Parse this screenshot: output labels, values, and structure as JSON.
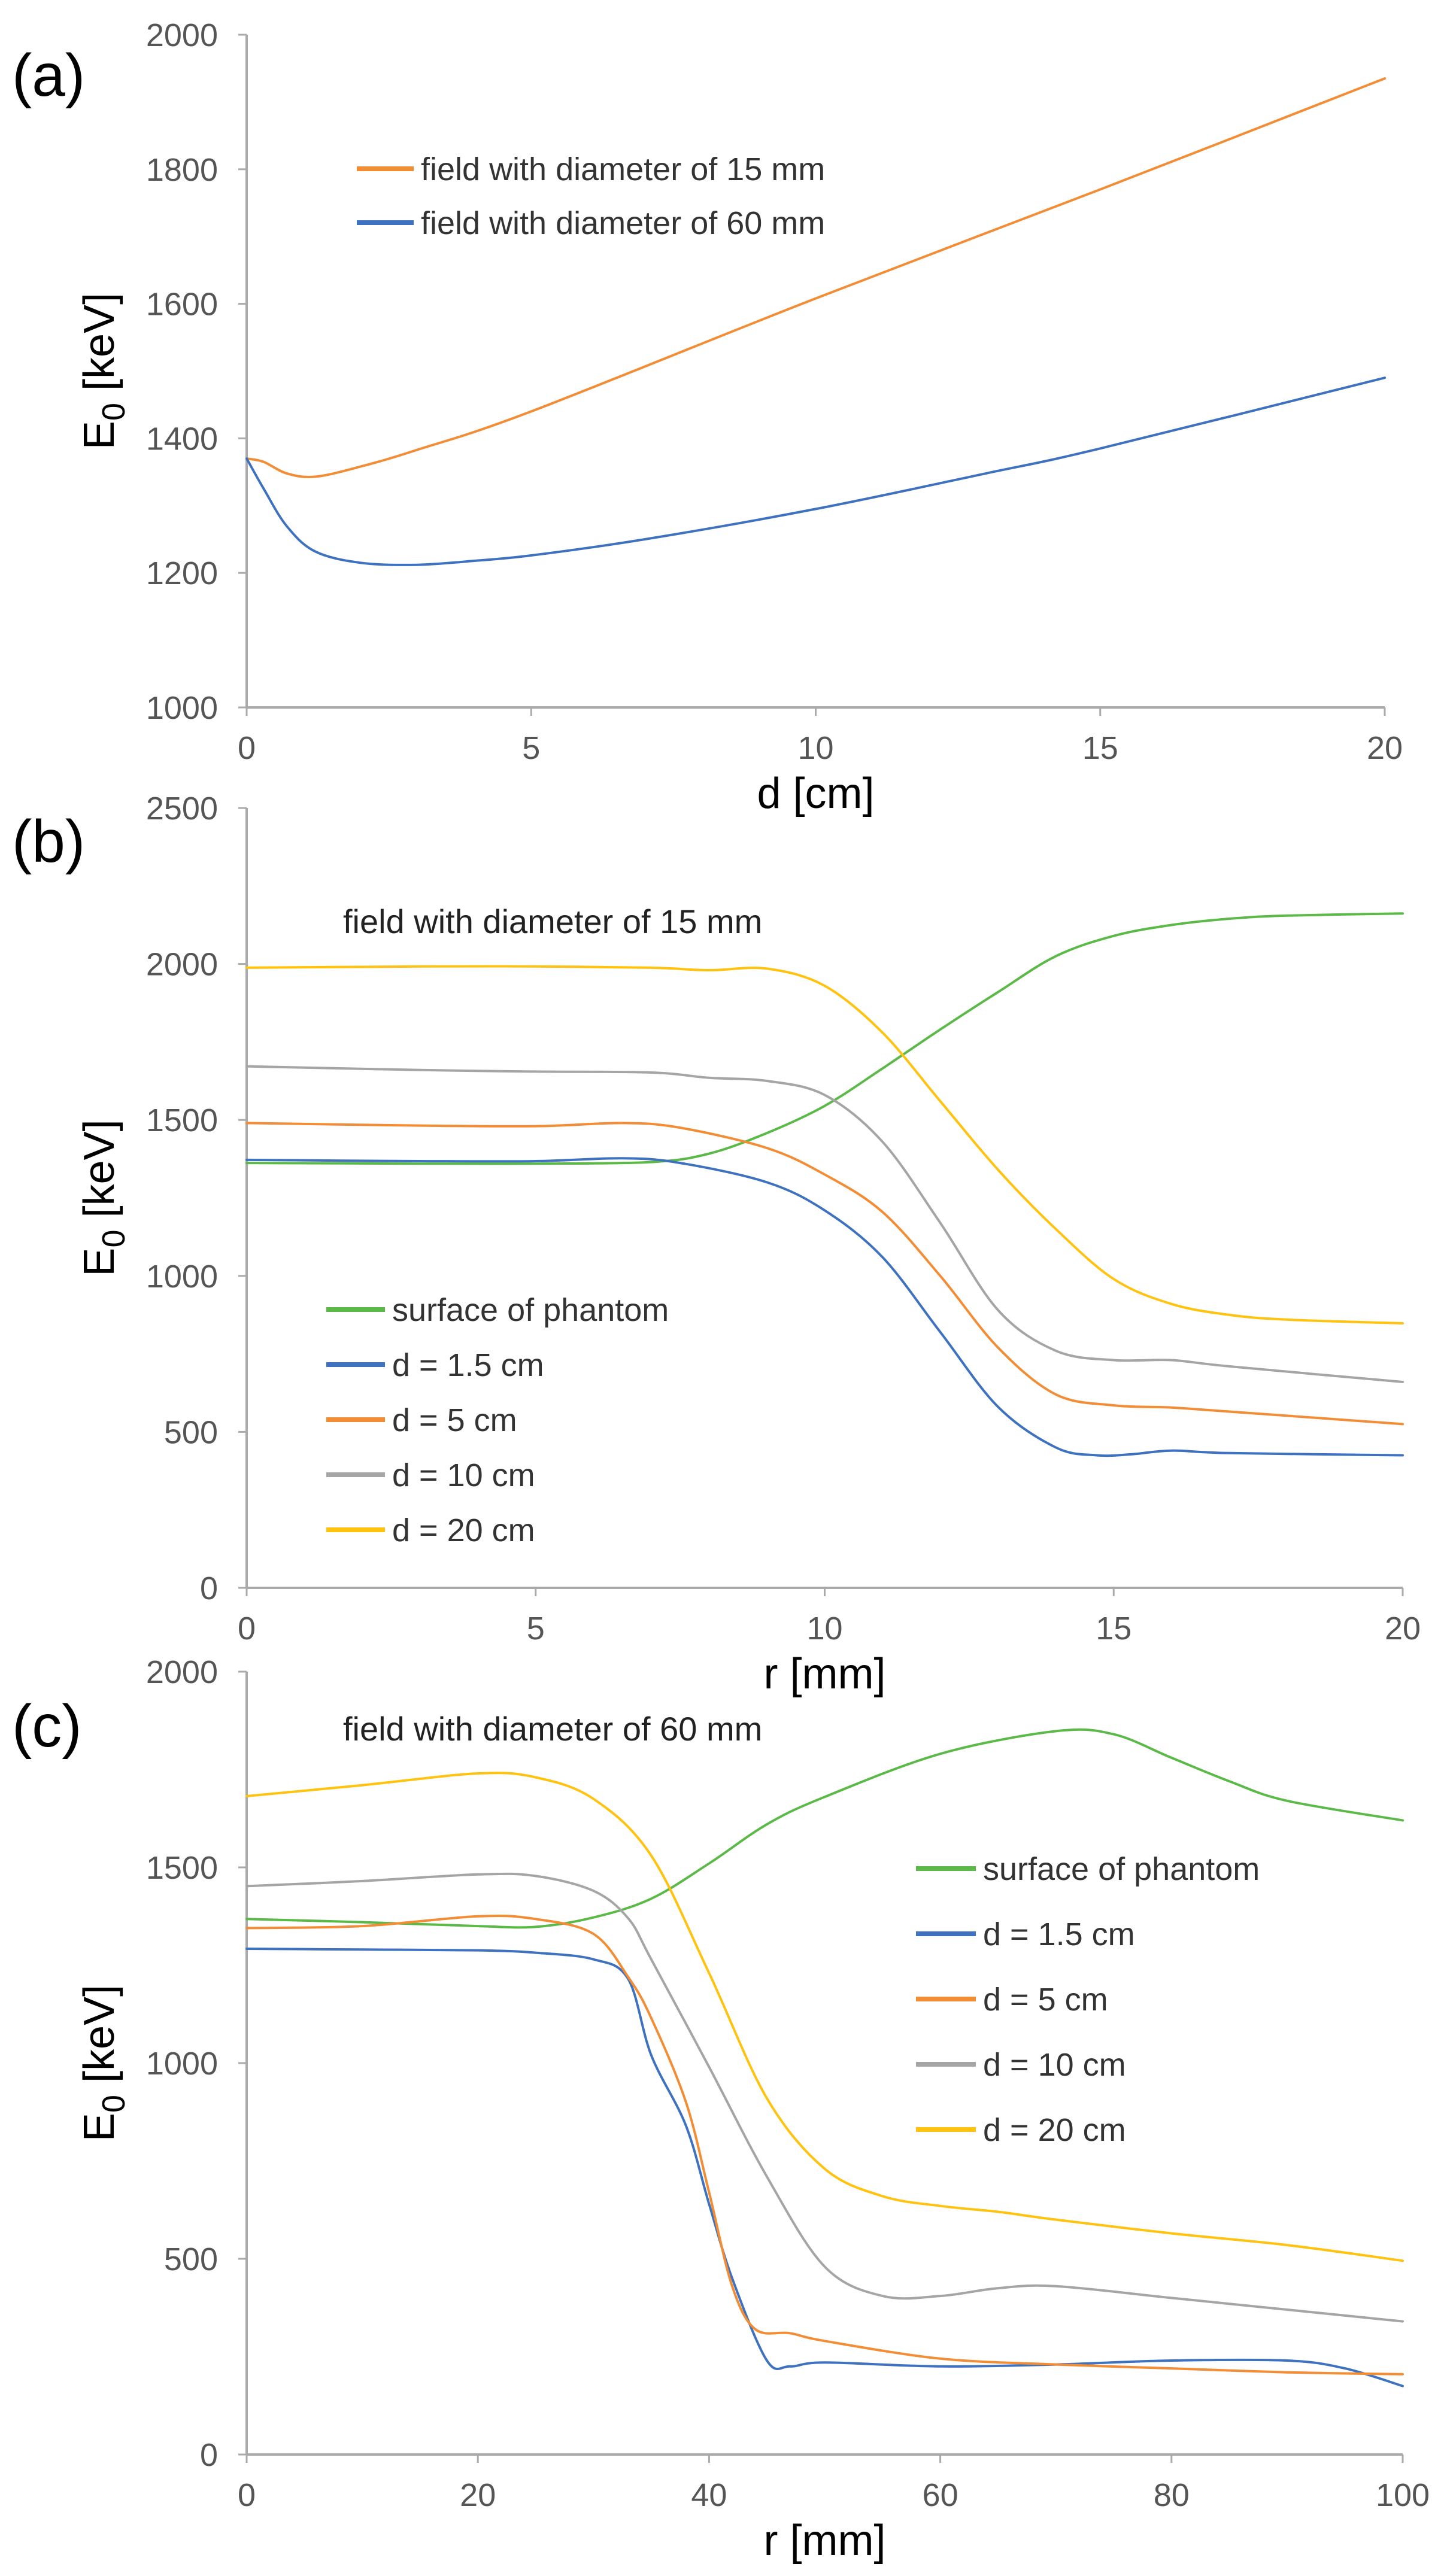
{
  "chart_data": [
    {
      "type": "line",
      "panel_label": "(a)",
      "title": "",
      "xlabel": "d [cm]",
      "ylabel_main": "E",
      "ylabel_sub": "0",
      "ylabel_unit": " [keV]",
      "xlim": [
        0,
        20
      ],
      "ylim": [
        1000,
        2000
      ],
      "xticks": [
        0,
        5,
        10,
        15,
        20
      ],
      "yticks": [
        1000,
        1200,
        1400,
        1600,
        1800,
        2000
      ],
      "grid": false,
      "legend_position": "top-left",
      "annotation": "",
      "series": [
        {
          "name": "field with diameter of 15 mm",
          "color": "#f28d35",
          "points": [
            [
              0,
              1370
            ],
            [
              0.3,
              1365
            ],
            [
              0.7,
              1348
            ],
            [
              1.2,
              1343
            ],
            [
              2,
              1358
            ],
            [
              3,
              1383
            ],
            [
              5,
              1440
            ],
            [
              10,
              1608
            ],
            [
              15,
              1770
            ],
            [
              20,
              1935
            ]
          ]
        },
        {
          "name": "field with diameter of 60 mm",
          "color": "#3e72c0",
          "points": [
            [
              0,
              1370
            ],
            [
              0.3,
              1325
            ],
            [
              0.7,
              1270
            ],
            [
              1.2,
              1232
            ],
            [
              2,
              1215
            ],
            [
              3,
              1212
            ],
            [
              4,
              1218
            ],
            [
              5,
              1226
            ],
            [
              7,
              1250
            ],
            [
              10,
              1295
            ],
            [
              13,
              1348
            ],
            [
              15,
              1385
            ],
            [
              20,
              1490
            ]
          ]
        }
      ]
    },
    {
      "type": "line",
      "panel_label": "(b)",
      "title": "",
      "xlabel": "r [mm]",
      "ylabel_main": "E",
      "ylabel_sub": "0",
      "ylabel_unit": " [keV]",
      "xlim": [
        0,
        20
      ],
      "ylim": [
        0,
        2500
      ],
      "xticks": [
        0,
        5,
        10,
        15,
        20
      ],
      "yticks": [
        0,
        500,
        1000,
        1500,
        2000,
        2500
      ],
      "grid": false,
      "legend_position": "bottom-left",
      "annotation": "field with diameter of 15 mm",
      "series": [
        {
          "name": "surface of phantom",
          "color": "#5bb948",
          "points": [
            [
              0,
              1362
            ],
            [
              3,
              1360
            ],
            [
              5,
              1360
            ],
            [
              7,
              1365
            ],
            [
              8,
              1392
            ],
            [
              9,
              1458
            ],
            [
              10,
              1545
            ],
            [
              11,
              1665
            ],
            [
              12,
              1790
            ],
            [
              13,
              1910
            ],
            [
              14,
              2025
            ],
            [
              15,
              2090
            ],
            [
              16,
              2125
            ],
            [
              17,
              2145
            ],
            [
              18,
              2155
            ],
            [
              20,
              2162
            ]
          ]
        },
        {
          "name": "d = 1.5 cm",
          "color": "#3e72c0",
          "points": [
            [
              0,
              1372
            ],
            [
              3,
              1368
            ],
            [
              5,
              1368
            ],
            [
              6.5,
              1377
            ],
            [
              7.5,
              1362
            ],
            [
              9,
              1300
            ],
            [
              10,
              1210
            ],
            [
              11,
              1060
            ],
            [
              12,
              820
            ],
            [
              13,
              580
            ],
            [
              14,
              450
            ],
            [
              14.7,
              425
            ],
            [
              15.3,
              428
            ],
            [
              16,
              440
            ],
            [
              17,
              432
            ],
            [
              20,
              425
            ]
          ]
        },
        {
          "name": "d = 5 cm",
          "color": "#f28d35",
          "points": [
            [
              0,
              1490
            ],
            [
              3,
              1482
            ],
            [
              5,
              1480
            ],
            [
              6.5,
              1490
            ],
            [
              7.5,
              1475
            ],
            [
              9,
              1410
            ],
            [
              10,
              1325
            ],
            [
              11,
              1205
            ],
            [
              12,
              1000
            ],
            [
              13,
              770
            ],
            [
              14,
              620
            ],
            [
              15,
              585
            ],
            [
              16,
              578
            ],
            [
              17,
              565
            ],
            [
              20,
              525
            ]
          ]
        },
        {
          "name": "d = 10 cm",
          "color": "#a5a5a5",
          "points": [
            [
              0,
              1672
            ],
            [
              3,
              1660
            ],
            [
              5,
              1655
            ],
            [
              7,
              1652
            ],
            [
              8,
              1635
            ],
            [
              9,
              1625
            ],
            [
              10,
              1580
            ],
            [
              11,
              1430
            ],
            [
              12,
              1170
            ],
            [
              13,
              890
            ],
            [
              14,
              760
            ],
            [
              15,
              730
            ],
            [
              16,
              730
            ],
            [
              17,
              710
            ],
            [
              20,
              660
            ]
          ]
        },
        {
          "name": "d = 20 cm",
          "color": "#ffc20e",
          "points": [
            [
              0,
              1988
            ],
            [
              3,
              1992
            ],
            [
              5,
              1992
            ],
            [
              7,
              1988
            ],
            [
              8,
              1980
            ],
            [
              9,
              1985
            ],
            [
              10,
              1930
            ],
            [
              11,
              1780
            ],
            [
              12,
              1560
            ],
            [
              13,
              1340
            ],
            [
              14,
              1150
            ],
            [
              15,
              990
            ],
            [
              16,
              910
            ],
            [
              17,
              875
            ],
            [
              18,
              860
            ],
            [
              20,
              848
            ]
          ]
        }
      ]
    },
    {
      "type": "line",
      "panel_label": "(c)",
      "title": "",
      "xlabel": "r [mm]",
      "ylabel_main": "E",
      "ylabel_sub": "0",
      "ylabel_unit": " [keV]",
      "xlim": [
        0,
        100
      ],
      "ylim": [
        0,
        2000
      ],
      "xticks": [
        0,
        20,
        40,
        60,
        80,
        100
      ],
      "yticks": [
        0,
        500,
        1000,
        1500,
        2000
      ],
      "grid": false,
      "legend_position": "right",
      "annotation": "field with diameter of 60 mm",
      "series": [
        {
          "name": "surface of phantom",
          "color": "#5bb948",
          "points": [
            [
              0,
              1368
            ],
            [
              10,
              1360
            ],
            [
              20,
              1350
            ],
            [
              25,
              1348
            ],
            [
              30,
              1372
            ],
            [
              35,
              1420
            ],
            [
              40,
              1510
            ],
            [
              45,
              1610
            ],
            [
              50,
              1680
            ],
            [
              60,
              1790
            ],
            [
              70,
              1848
            ],
            [
              75,
              1840
            ],
            [
              80,
              1780
            ],
            [
              85,
              1720
            ],
            [
              90,
              1670
            ],
            [
              100,
              1620
            ]
          ]
        },
        {
          "name": "d = 1.5 cm",
          "color": "#3e72c0",
          "points": [
            [
              0,
              1292
            ],
            [
              10,
              1290
            ],
            [
              20,
              1288
            ],
            [
              25,
              1282
            ],
            [
              30,
              1265
            ],
            [
              33,
              1215
            ],
            [
              35,
              1020
            ],
            [
              38,
              840
            ],
            [
              40,
              640
            ],
            [
              42,
              450
            ],
            [
              45,
              240
            ],
            [
              47,
              225
            ],
            [
              50,
              235
            ],
            [
              60,
              225
            ],
            [
              70,
              230
            ],
            [
              80,
              240
            ],
            [
              90,
              240
            ],
            [
              95,
              220
            ],
            [
              100,
              175
            ]
          ]
        },
        {
          "name": "d = 5 cm",
          "color": "#f28d35",
          "points": [
            [
              0,
              1345
            ],
            [
              10,
              1350
            ],
            [
              20,
              1375
            ],
            [
              25,
              1368
            ],
            [
              30,
              1330
            ],
            [
              33,
              1220
            ],
            [
              35,
              1115
            ],
            [
              38,
              900
            ],
            [
              40,
              670
            ],
            [
              42,
              430
            ],
            [
              44,
              320
            ],
            [
              47,
              310
            ],
            [
              50,
              290
            ],
            [
              60,
              245
            ],
            [
              70,
              230
            ],
            [
              80,
              220
            ],
            [
              90,
              210
            ],
            [
              100,
              205
            ]
          ]
        },
        {
          "name": "d = 10 cm",
          "color": "#a5a5a5",
          "points": [
            [
              0,
              1452
            ],
            [
              10,
              1465
            ],
            [
              20,
              1482
            ],
            [
              25,
              1478
            ],
            [
              30,
              1440
            ],
            [
              33,
              1370
            ],
            [
              35,
              1265
            ],
            [
              40,
              990
            ],
            [
              45,
              710
            ],
            [
              50,
              480
            ],
            [
              55,
              405
            ],
            [
              60,
              405
            ],
            [
              65,
              425
            ],
            [
              70,
              430
            ],
            [
              80,
              400
            ],
            [
              90,
              370
            ],
            [
              100,
              340
            ]
          ]
        },
        {
          "name": "d = 20 cm",
          "color": "#ffc20e",
          "points": [
            [
              0,
              1682
            ],
            [
              10,
              1710
            ],
            [
              20,
              1740
            ],
            [
              25,
              1730
            ],
            [
              30,
              1675
            ],
            [
              35,
              1530
            ],
            [
              40,
              1230
            ],
            [
              45,
              910
            ],
            [
              50,
              730
            ],
            [
              55,
              660
            ],
            [
              60,
              635
            ],
            [
              65,
              620
            ],
            [
              70,
              600
            ],
            [
              80,
              565
            ],
            [
              90,
              535
            ],
            [
              100,
              495
            ]
          ]
        }
      ]
    }
  ]
}
